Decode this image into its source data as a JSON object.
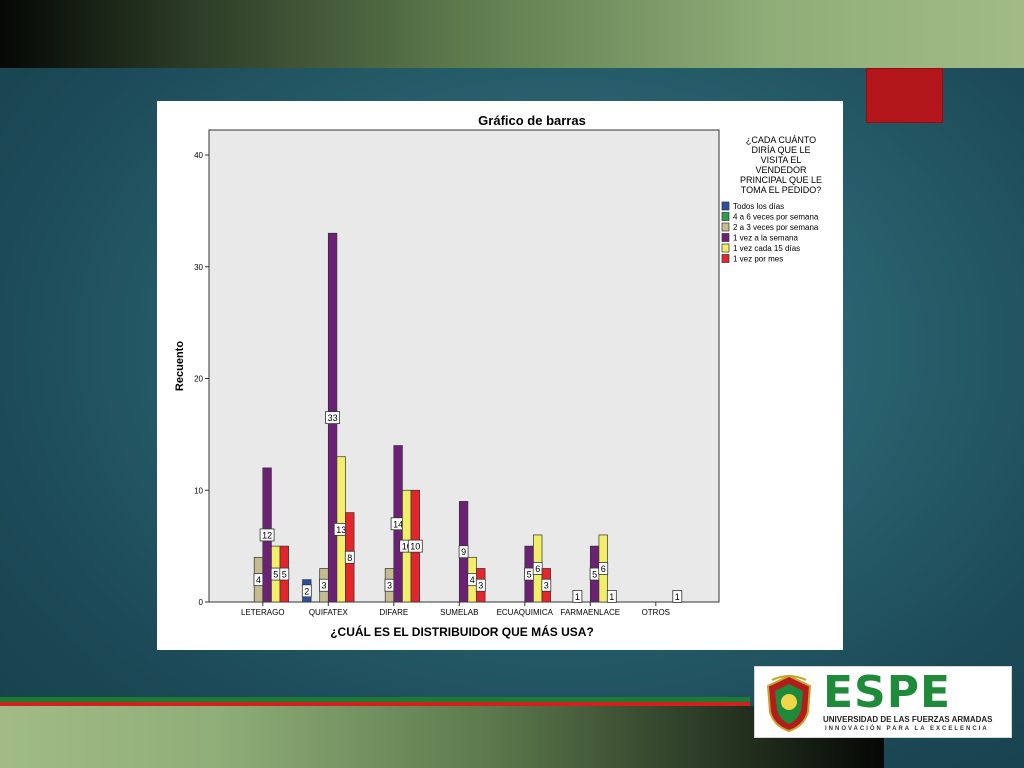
{
  "logo": {
    "word": "ESPE",
    "subtitle": "UNIVERSIDAD DE LAS FUERZAS ARMADAS",
    "tagline": "INNOVACIÓN PARA LA EXCELENCIA"
  },
  "colors": {
    "accent_red": "#b2161a",
    "logo_green": "#1e8a3a"
  },
  "chart_data": {
    "type": "bar",
    "title": "Gráfico de barras",
    "xlabel": "¿CUÁL ES EL DISTRIBUIDOR QUE MÁS USA?",
    "ylabel": "Recuento",
    "ylim": [
      0,
      40
    ],
    "yticks": [
      0,
      10,
      20,
      30,
      40
    ],
    "grid": false,
    "legend_position": "right",
    "legend_title": "¿CADA CUÁNTO DIRÍA QUE LE VISITA EL VENDEDOR PRINCIPAL QUE LE TOMA EL PEDIDO?",
    "categories": [
      "LETERAGO",
      "QUIFATEX",
      "DIFARE",
      "SUMELAB",
      "ECUAQUIMICA",
      "FARMAENLACE",
      "OTROS"
    ],
    "series": [
      {
        "name": "Todos los días",
        "color": "#2b4fa0",
        "values": [
          null,
          2,
          null,
          null,
          null,
          null,
          null
        ]
      },
      {
        "name": "4 a 6 veces por semana",
        "color": "#2aa04a",
        "values": [
          null,
          null,
          null,
          null,
          null,
          1,
          null
        ]
      },
      {
        "name": "2 a 3 veces por semana",
        "color": "#c5bc92",
        "values": [
          4,
          3,
          3,
          null,
          null,
          null,
          null
        ]
      },
      {
        "name": "1 vez a la semana",
        "color": "#6b2275",
        "values": [
          12,
          33,
          14,
          9,
          5,
          5,
          null
        ]
      },
      {
        "name": "1 vez cada 15 días",
        "color": "#f3ee6a",
        "values": [
          5,
          13,
          10,
          4,
          6,
          6,
          null
        ]
      },
      {
        "name": "1 vez por mes",
        "color": "#e3262c",
        "values": [
          5,
          8,
          10,
          3,
          3,
          1,
          1
        ]
      }
    ]
  }
}
